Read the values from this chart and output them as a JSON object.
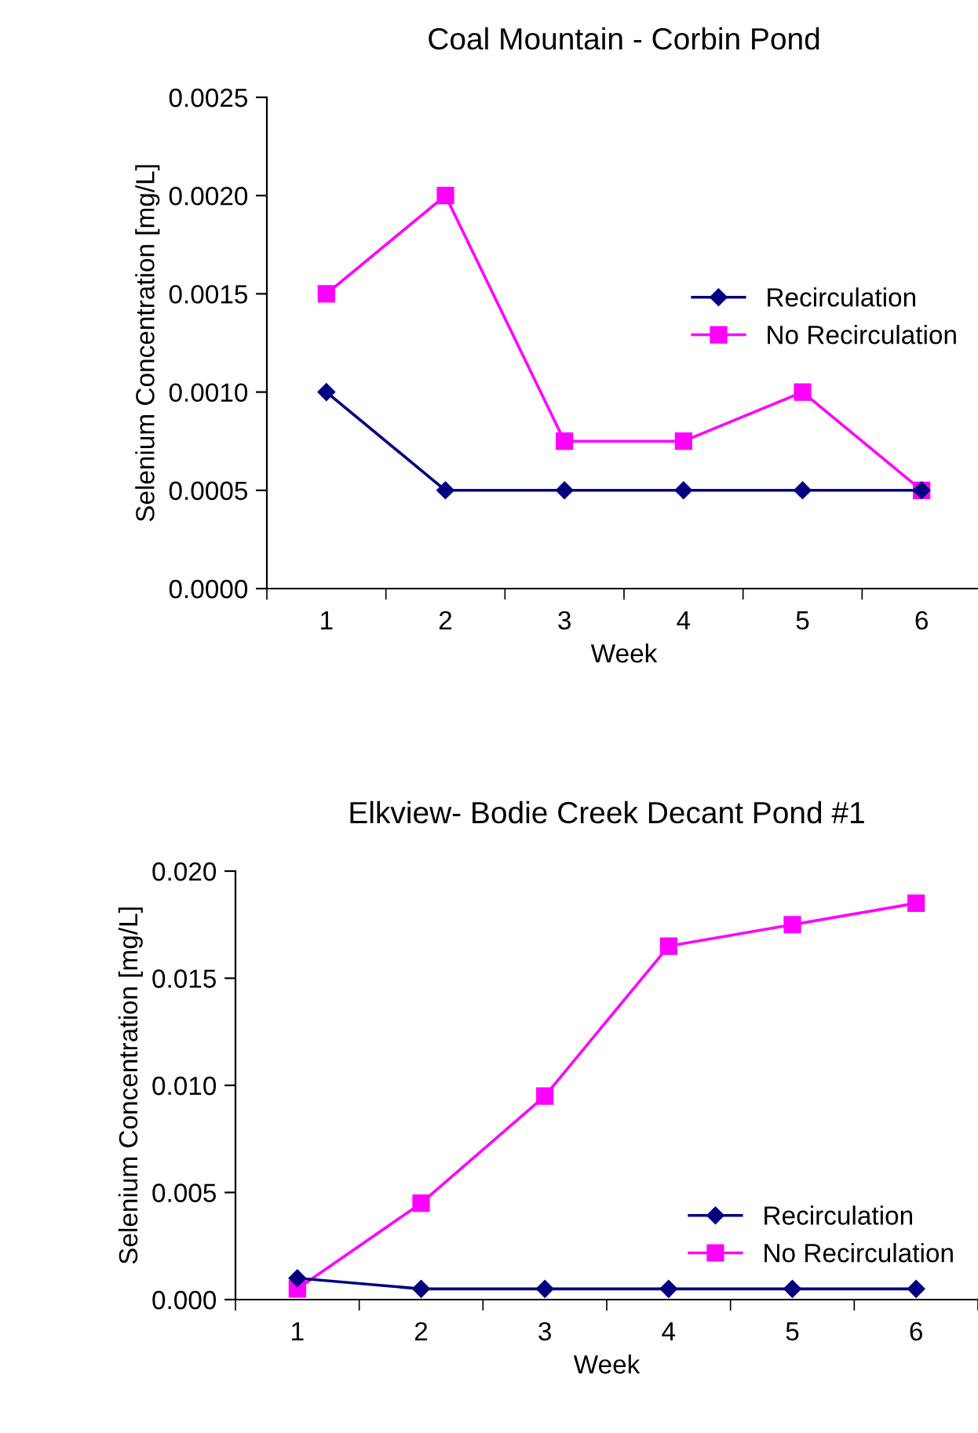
{
  "chart_data": [
    {
      "type": "line",
      "title": "Coal Mountain - Corbin Pond",
      "xlabel": "Week",
      "ylabel": "Selenium Concentration [mg/L]",
      "categories": [
        "1",
        "2",
        "3",
        "4",
        "5",
        "6"
      ],
      "series": [
        {
          "name": "Recirculation",
          "color": "#000080",
          "marker": "diamond",
          "values": [
            0.001,
            0.0005,
            0.0005,
            0.0005,
            0.0005,
            0.0005
          ]
        },
        {
          "name": "No Recirculation",
          "color": "#ff00ff",
          "marker": "square",
          "values": [
            0.0015,
            0.002,
            0.00075,
            0.00075,
            0.001,
            0.0005
          ]
        }
      ],
      "ylim": [
        0,
        0.0025
      ],
      "yticks": [
        {
          "value": 0,
          "label": "0.0000"
        },
        {
          "value": 0.0005,
          "label": "0.0005"
        },
        {
          "value": 0.001,
          "label": "0.0010"
        },
        {
          "value": 0.0015,
          "label": "0.0015"
        },
        {
          "value": 0.002,
          "label": "0.0020"
        },
        {
          "value": 0.0025,
          "label": "0.0025"
        }
      ],
      "grid": false,
      "legend": "right",
      "line_style": "solid"
    },
    {
      "type": "line",
      "title": "Elkview- Bodie Creek Decant Pond #1",
      "xlabel": "Week",
      "ylabel": "Selenium Concentration [mg/L]",
      "categories": [
        "1",
        "2",
        "3",
        "4",
        "5",
        "6"
      ],
      "series": [
        {
          "name": "Recirculation",
          "color": "#000080",
          "marker": "diamond",
          "values": [
            0.001,
            0.0005,
            0.0005,
            0.0005,
            0.0005,
            0.0005
          ]
        },
        {
          "name": "No Recirculation",
          "color": "#ff00ff",
          "marker": "square",
          "values": [
            0.0005,
            0.0045,
            0.0095,
            0.0165,
            0.0175,
            0.0185
          ]
        }
      ],
      "ylim": [
        0,
        0.02
      ],
      "yticks": [
        {
          "value": 0,
          "label": "0.000"
        },
        {
          "value": 0.005,
          "label": "0.005"
        },
        {
          "value": 0.01,
          "label": "0.010"
        },
        {
          "value": 0.015,
          "label": "0.015"
        },
        {
          "value": 0.02,
          "label": "0.020"
        }
      ],
      "grid": false,
      "legend": "lower right",
      "line_style": "solid"
    }
  ]
}
